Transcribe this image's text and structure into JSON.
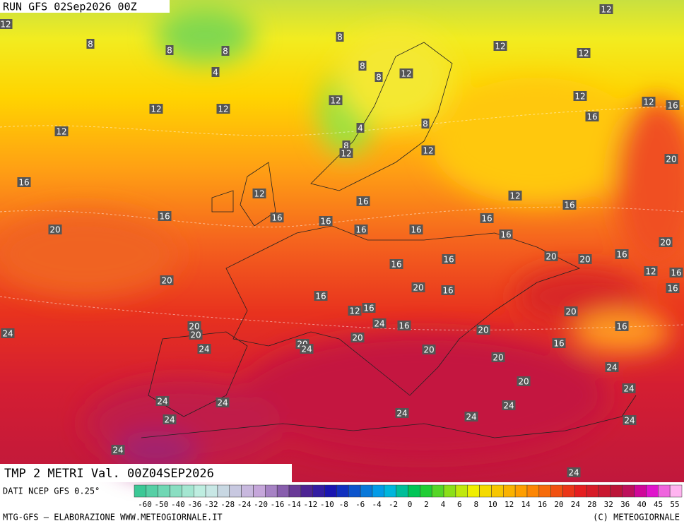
{
  "header": {
    "run": "RUN GFS 02Sep2026 00Z",
    "title": "TMP 2 METRI Val. 00Z04SEP2026"
  },
  "map": {
    "contour_labels": [
      "12",
      "12",
      "8",
      "8",
      "8",
      "8",
      "12",
      "12",
      "4",
      "8",
      "12",
      "8",
      "12",
      "12",
      "12",
      "16",
      "12",
      "12",
      "16",
      "8",
      "4",
      "12",
      "8",
      "12",
      "12",
      "20",
      "16",
      "12",
      "12",
      "16",
      "16",
      "16",
      "16",
      "16",
      "16",
      "20",
      "16",
      "16",
      "16",
      "20",
      "20",
      "20",
      "16",
      "16",
      "16",
      "12",
      "16",
      "20",
      "20",
      "16",
      "16",
      "16",
      "20",
      "12",
      "16",
      "24",
      "16",
      "20",
      "16",
      "20",
      "20",
      "24",
      "24",
      "20",
      "24",
      "20",
      "20",
      "16",
      "20",
      "24",
      "20",
      "24",
      "24",
      "24",
      "24",
      "24",
      "24",
      "24",
      "24",
      "24",
      "24"
    ]
  },
  "legend": {
    "source": "DATI NCEP GFS 0.25°",
    "ticks": [
      "-60",
      "-50",
      "-40",
      "-36",
      "-32",
      "-28",
      "-24",
      "-20",
      "-16",
      "-14",
      "-12",
      "-10",
      "-8",
      "-6",
      "-4",
      "-2",
      "0",
      "2",
      "4",
      "6",
      "8",
      "10",
      "12",
      "14",
      "16",
      "20",
      "24",
      "28",
      "32",
      "36",
      "40",
      "45",
      "55"
    ]
  },
  "footer": {
    "left": "MTG-GFS — ELABORAZIONE WWW.METEOGIORNALE.IT",
    "right": "(C) METEOGIORNALE"
  }
}
